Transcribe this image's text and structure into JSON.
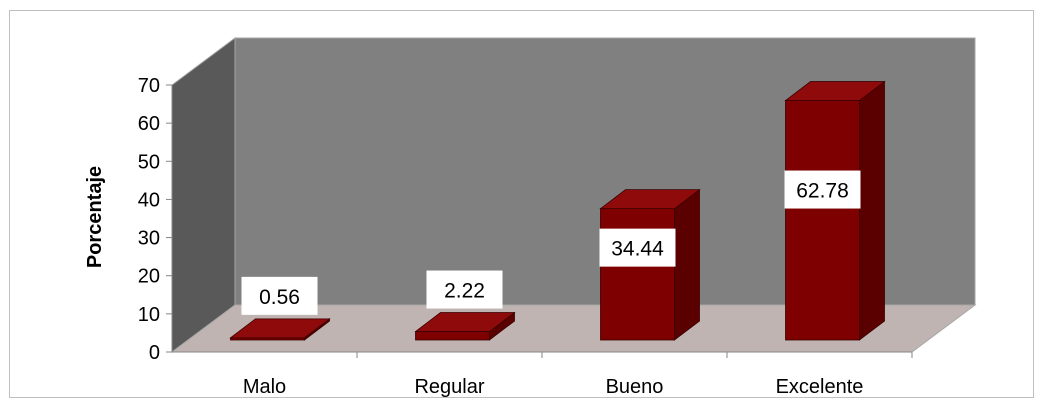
{
  "chart_data": {
    "type": "bar",
    "title": "",
    "xlabel": "",
    "ylabel": "Porcentaje",
    "ylim": [
      0,
      70
    ],
    "yticks": [
      0,
      10,
      20,
      30,
      40,
      50,
      60,
      70
    ],
    "categories": [
      "Malo",
      "Regular",
      "Bueno",
      "Excelente"
    ],
    "values": [
      0.56,
      2.22,
      34.44,
      62.78
    ],
    "data_labels": [
      "0.56",
      "2.22",
      "34.44",
      "62.78"
    ],
    "grid": false,
    "legend": "none",
    "style": "3d-column",
    "colors": {
      "bar_front": "#7f0000",
      "bar_side": "#5a0000",
      "bar_top": "#8f0a0a",
      "back_wall": "#808080",
      "side_wall": "#595959",
      "floor": "#c0b4b2"
    }
  }
}
